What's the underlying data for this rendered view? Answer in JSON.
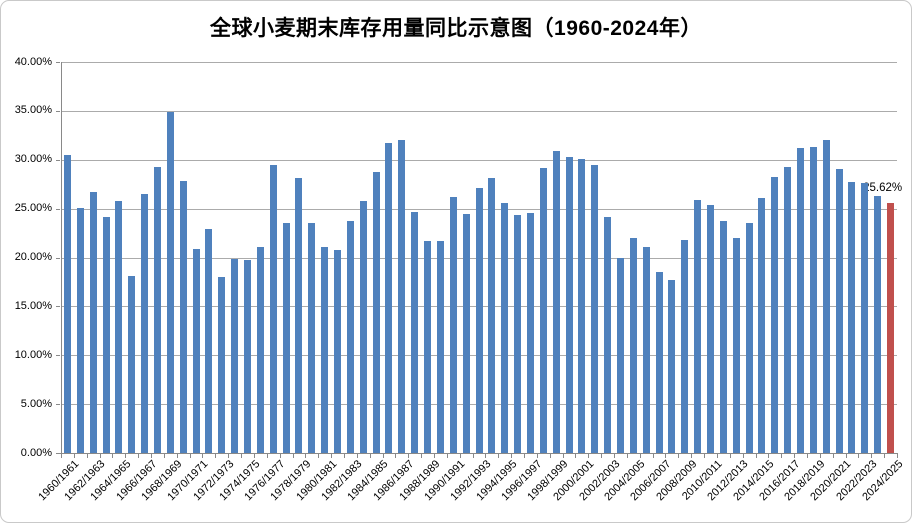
{
  "title": "全球小麦期末库存用量同比示意图（1960-2024年）",
  "colors": {
    "bar": "#4f81bd",
    "highlight_bar": "#c0504d",
    "gridline": "#ababab",
    "axis": "#898989",
    "text": "#000000"
  },
  "chart_data": {
    "type": "bar",
    "title": "全球小麦期末库存用量同比示意图（1960-2024年）",
    "xlabel": "",
    "ylabel": "",
    "ylim": [
      0,
      40
    ],
    "y_step": 5,
    "grid": true,
    "legend": "none",
    "y_tick_labels": [
      "40.00%",
      "35.00%",
      "30.00%",
      "25.00%",
      "20.00%",
      "15.00%",
      "10.00%",
      "5.00%",
      "0.00%"
    ],
    "x_tick_labels": [
      "1960/1961",
      "1962/1963",
      "1964/1965",
      "1966/1967",
      "1968/1969",
      "1970/1971",
      "1972/1973",
      "1974/1975",
      "1976/1977",
      "1978/1979",
      "1980/1981",
      "1982/1983",
      "1984/1985",
      "1986/1987",
      "1988/1989",
      "1990/1991",
      "1992/1993",
      "1994/1995",
      "1996/1997",
      "1998/1999",
      "2000/2001",
      "2002/2003",
      "2004/2005",
      "2006/2007",
      "2008/2009",
      "2010/2011",
      "2012/2013",
      "2014/2015",
      "2016/2017",
      "2018/2019",
      "2020/2021",
      "2022/2023",
      "2024/2025"
    ],
    "categories": [
      "1960/1961",
      "1961/1962",
      "1962/1963",
      "1963/1964",
      "1964/1965",
      "1965/1966",
      "1966/1967",
      "1967/1968",
      "1968/1969",
      "1969/1970",
      "1970/1971",
      "1971/1972",
      "1972/1973",
      "1973/1974",
      "1974/1975",
      "1975/1976",
      "1976/1977",
      "1977/1978",
      "1978/1979",
      "1979/1980",
      "1980/1981",
      "1981/1982",
      "1982/1983",
      "1983/1984",
      "1984/1985",
      "1985/1986",
      "1986/1987",
      "1987/1988",
      "1988/1989",
      "1989/1990",
      "1990/1991",
      "1991/1992",
      "1992/1993",
      "1993/1994",
      "1994/1995",
      "1995/1996",
      "1996/1997",
      "1997/1998",
      "1998/1999",
      "1999/2000",
      "2000/2001",
      "2001/2002",
      "2002/2003",
      "2003/2004",
      "2004/2005",
      "2005/2006",
      "2006/2007",
      "2007/2008",
      "2008/2009",
      "2009/2010",
      "2010/2011",
      "2011/2012",
      "2012/2013",
      "2013/2014",
      "2014/2015",
      "2015/2016",
      "2016/2017",
      "2017/2018",
      "2018/2019",
      "2019/2020",
      "2020/2021",
      "2021/2022",
      "2022/2023",
      "2023/2024",
      "2024/2025"
    ],
    "values": [
      30.5,
      25.1,
      26.7,
      24.1,
      25.8,
      18.1,
      26.5,
      29.3,
      34.9,
      27.8,
      20.9,
      22.9,
      18.0,
      19.8,
      19.7,
      21.1,
      29.5,
      23.5,
      28.1,
      23.5,
      21.1,
      20.8,
      23.7,
      25.8,
      28.7,
      31.7,
      32.0,
      24.7,
      21.7,
      21.7,
      26.2,
      24.5,
      27.1,
      28.1,
      25.6,
      24.3,
      24.6,
      29.2,
      30.9,
      30.3,
      30.1,
      29.5,
      24.1,
      19.9,
      22.0,
      21.1,
      18.5,
      17.7,
      21.8,
      25.9,
      25.4,
      23.7,
      22.0,
      23.5,
      26.1,
      28.2,
      29.3,
      31.2,
      31.3,
      32.0,
      29.1,
      27.7,
      27.6,
      26.3,
      25.62
    ],
    "highlight": {
      "category": "2024/2025",
      "index": 64,
      "value": 25.62,
      "color": "#c0504d"
    },
    "annotation": {
      "text": "25.62%"
    }
  }
}
